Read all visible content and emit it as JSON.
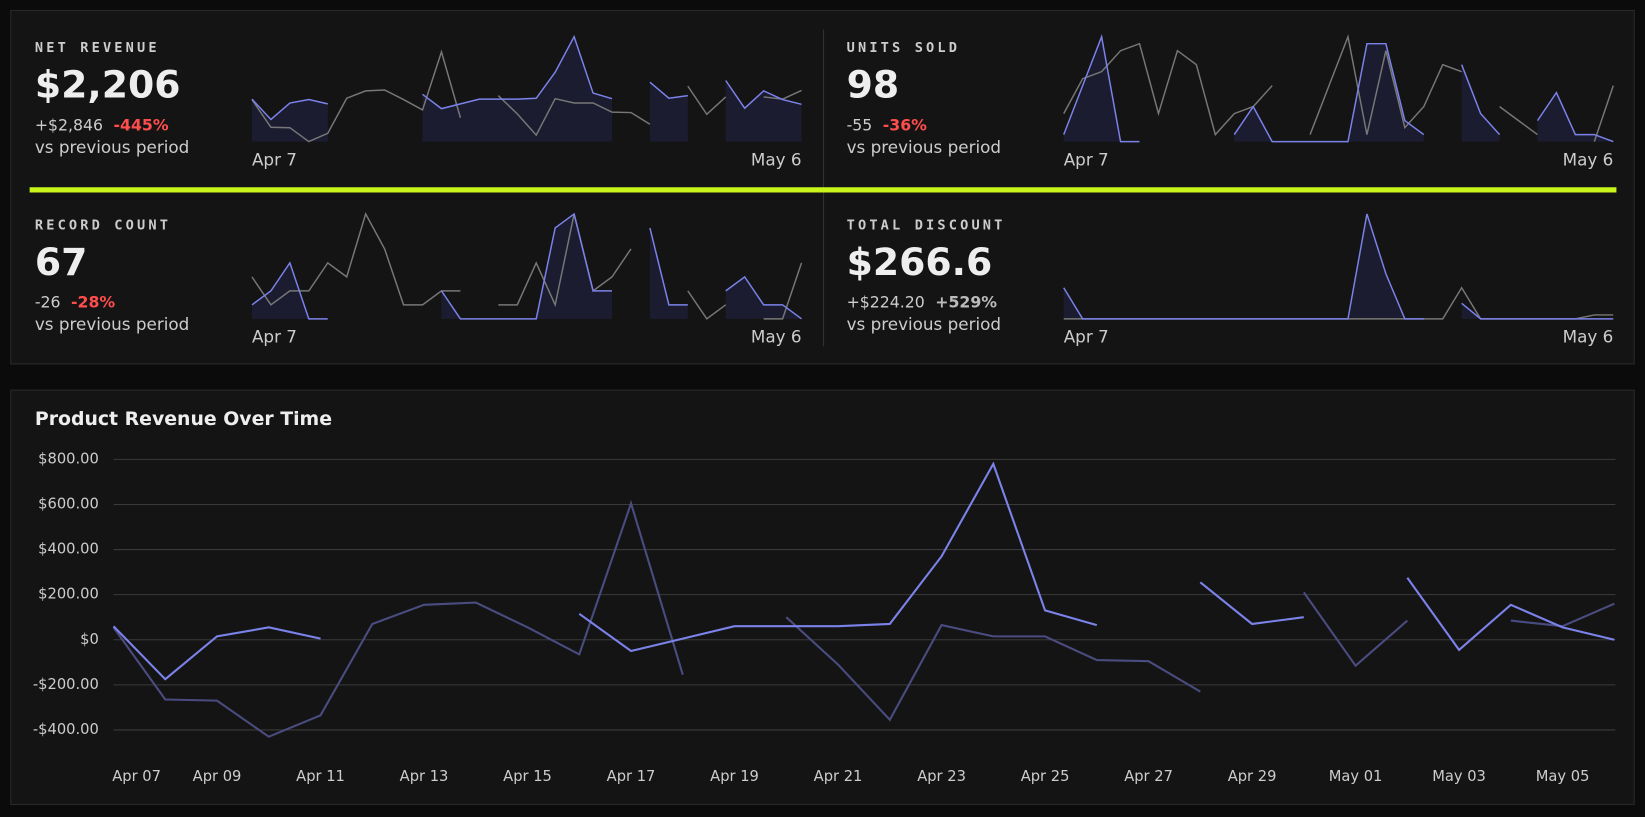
{
  "kpis": [
    {
      "title": "NET REVENUE",
      "value": "$2,206",
      "delta": "+$2,846",
      "delta_pct": "-445%",
      "pct_color": "#ff4d4d",
      "note": "vs previous period",
      "labels": [
        "Apr 7",
        "May 6"
      ],
      "current": [
        60,
        -175,
        15,
        55,
        5,
        null,
        null,
        null,
        null,
        115,
        -50,
        5,
        60,
        60,
        60,
        70,
        370,
        780,
        130,
        65,
        null,
        255,
        70,
        100,
        null,
        275,
        -45,
        155,
        55,
        0
      ],
      "previous": [
        55,
        -265,
        -270,
        -430,
        -335,
        70,
        155,
        165,
        55,
        -65,
        605,
        -155,
        null,
        100,
        -110,
        -355,
        65,
        15,
        15,
        -90,
        -95,
        -230,
        null,
        210,
        -115,
        85,
        null,
        85,
        60,
        160
      ]
    },
    {
      "title": "UNITS SOLD",
      "value": "98",
      "delta": "-55",
      "delta_pct": "-36%",
      "pct_color": "#ff4d4d",
      "note": "vs previous period",
      "labels": [
        "Apr 7",
        "May 6"
      ],
      "current": [
        1,
        8,
        15,
        0,
        0,
        null,
        null,
        null,
        null,
        1,
        5,
        0,
        0,
        0,
        0,
        0,
        14,
        14,
        3,
        1,
        null,
        11,
        4,
        1,
        null,
        3,
        7,
        1,
        1,
        0
      ],
      "previous": [
        4,
        9,
        10,
        13,
        14,
        4,
        13,
        11,
        1,
        4,
        5,
        8,
        null,
        1,
        8,
        15,
        1,
        13,
        2,
        5,
        11,
        10,
        null,
        5,
        3,
        1,
        null,
        null,
        0,
        8
      ]
    },
    {
      "title": "RECORD COUNT",
      "value": "67",
      "delta": "-26",
      "delta_pct": "-28%",
      "pct_color": "#ff4d4d",
      "note": "vs previous period",
      "labels": [
        "Apr 7",
        "May 6"
      ],
      "current": [
        4,
        6,
        10,
        2,
        2,
        null,
        null,
        null,
        null,
        null,
        6,
        2,
        2,
        2,
        2,
        2,
        15,
        17,
        6,
        6,
        null,
        15,
        4,
        4,
        null,
        6,
        8,
        4,
        4,
        2
      ],
      "previous": [
        8,
        4,
        6,
        6,
        10,
        8,
        17,
        12,
        4,
        4,
        6,
        6,
        null,
        4,
        4,
        10,
        4,
        17,
        6,
        8,
        12,
        null,
        null,
        6,
        2,
        4,
        null,
        2,
        2,
        10
      ]
    },
    {
      "title": "TOTAL DISCOUNT",
      "value": "$266.6",
      "delta": "+$224.20",
      "delta_pct": "+529%",
      "pct_color": "#bbbbbb",
      "note": "vs previous period",
      "labels": [
        "Apr 7",
        "May 6"
      ],
      "current": [
        40,
        0,
        0,
        0,
        0,
        0,
        0,
        0,
        0,
        0,
        0,
        0,
        0,
        0,
        0,
        0,
        135,
        58,
        0,
        0,
        null,
        20,
        0,
        0,
        0,
        0,
        0,
        0,
        0,
        0
      ],
      "previous": [
        0,
        0,
        0,
        0,
        0,
        0,
        0,
        0,
        0,
        0,
        0,
        0,
        0,
        0,
        0,
        0,
        0,
        0,
        0,
        0,
        0,
        40,
        0,
        0,
        0,
        0,
        0,
        0,
        5,
        5
      ]
    }
  ],
  "spark_colors": {
    "current": "#7b83eb",
    "previous": "#777777"
  },
  "chart_data": {
    "type": "line",
    "title": "Product Revenue Over Time",
    "categories": [
      "Apr 07",
      null,
      "Apr 09",
      null,
      "Apr 11",
      null,
      "Apr 13",
      null,
      "Apr 15",
      null,
      "Apr 17",
      null,
      "Apr 19",
      null,
      "Apr 21",
      null,
      "Apr 23",
      null,
      "Apr 25",
      null,
      "Apr 27",
      null,
      "Apr 29",
      null,
      "May 01",
      null,
      "May 03",
      null,
      "May 05",
      null
    ],
    "series": [
      {
        "color": "#7b83eb",
        "values": [
          60,
          -175,
          15,
          55,
          5,
          null,
          null,
          null,
          null,
          115,
          -50,
          5,
          60,
          60,
          60,
          70,
          370,
          780,
          130,
          65,
          null,
          255,
          70,
          100,
          null,
          275,
          -45,
          155,
          55,
          0
        ]
      },
      {
        "color": "#4a4c80",
        "values": [
          55,
          -265,
          -270,
          -430,
          -335,
          70,
          155,
          165,
          55,
          -65,
          605,
          -155,
          null,
          100,
          -110,
          -355,
          65,
          15,
          15,
          -90,
          -95,
          -230,
          null,
          210,
          -115,
          85,
          null,
          85,
          60,
          160
        ]
      }
    ],
    "ylim": [
      -400,
      800
    ],
    "yticks": [
      {
        "value": -400,
        "label": "-$400.00"
      },
      {
        "value": -200,
        "label": "-$200.00"
      },
      {
        "value": 0,
        "label": "$0"
      },
      {
        "value": 200,
        "label": "$200.00"
      },
      {
        "value": 400,
        "label": "$400.00"
      },
      {
        "value": 600,
        "label": "$600.00"
      },
      {
        "value": 800,
        "label": "$800.00"
      }
    ],
    "grid": true
  }
}
